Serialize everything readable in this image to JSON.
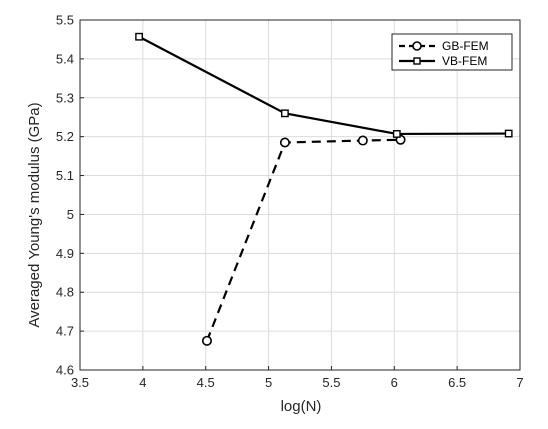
{
  "chart_data": {
    "type": "line",
    "xlabel": "log(N)",
    "ylabel": "Averaged Young's modulus (GPa)",
    "xlim": [
      3.5,
      7
    ],
    "ylim": [
      4.6,
      5.5
    ],
    "xticks": [
      "3.5",
      "4",
      "4.5",
      "5",
      "5.5",
      "6",
      "6.5",
      "7"
    ],
    "yticks": [
      "4.6",
      "4.7",
      "4.8",
      "4.9",
      "5",
      "5.1",
      "5.2",
      "5.3",
      "5.4",
      "5.5"
    ],
    "grid": true,
    "legend_position": "top-right",
    "series": [
      {
        "name": "GB-FEM",
        "line_style": "dashed",
        "marker": "circle",
        "color": "#000000",
        "x": [
          4.51,
          5.13,
          5.75,
          6.05
        ],
        "y": [
          4.675,
          5.185,
          5.19,
          5.192
        ]
      },
      {
        "name": "VB-FEM",
        "line_style": "solid",
        "marker": "square",
        "color": "#000000",
        "x": [
          3.97,
          5.13,
          6.02,
          6.91
        ],
        "y": [
          5.457,
          5.26,
          5.207,
          5.208
        ]
      }
    ]
  }
}
